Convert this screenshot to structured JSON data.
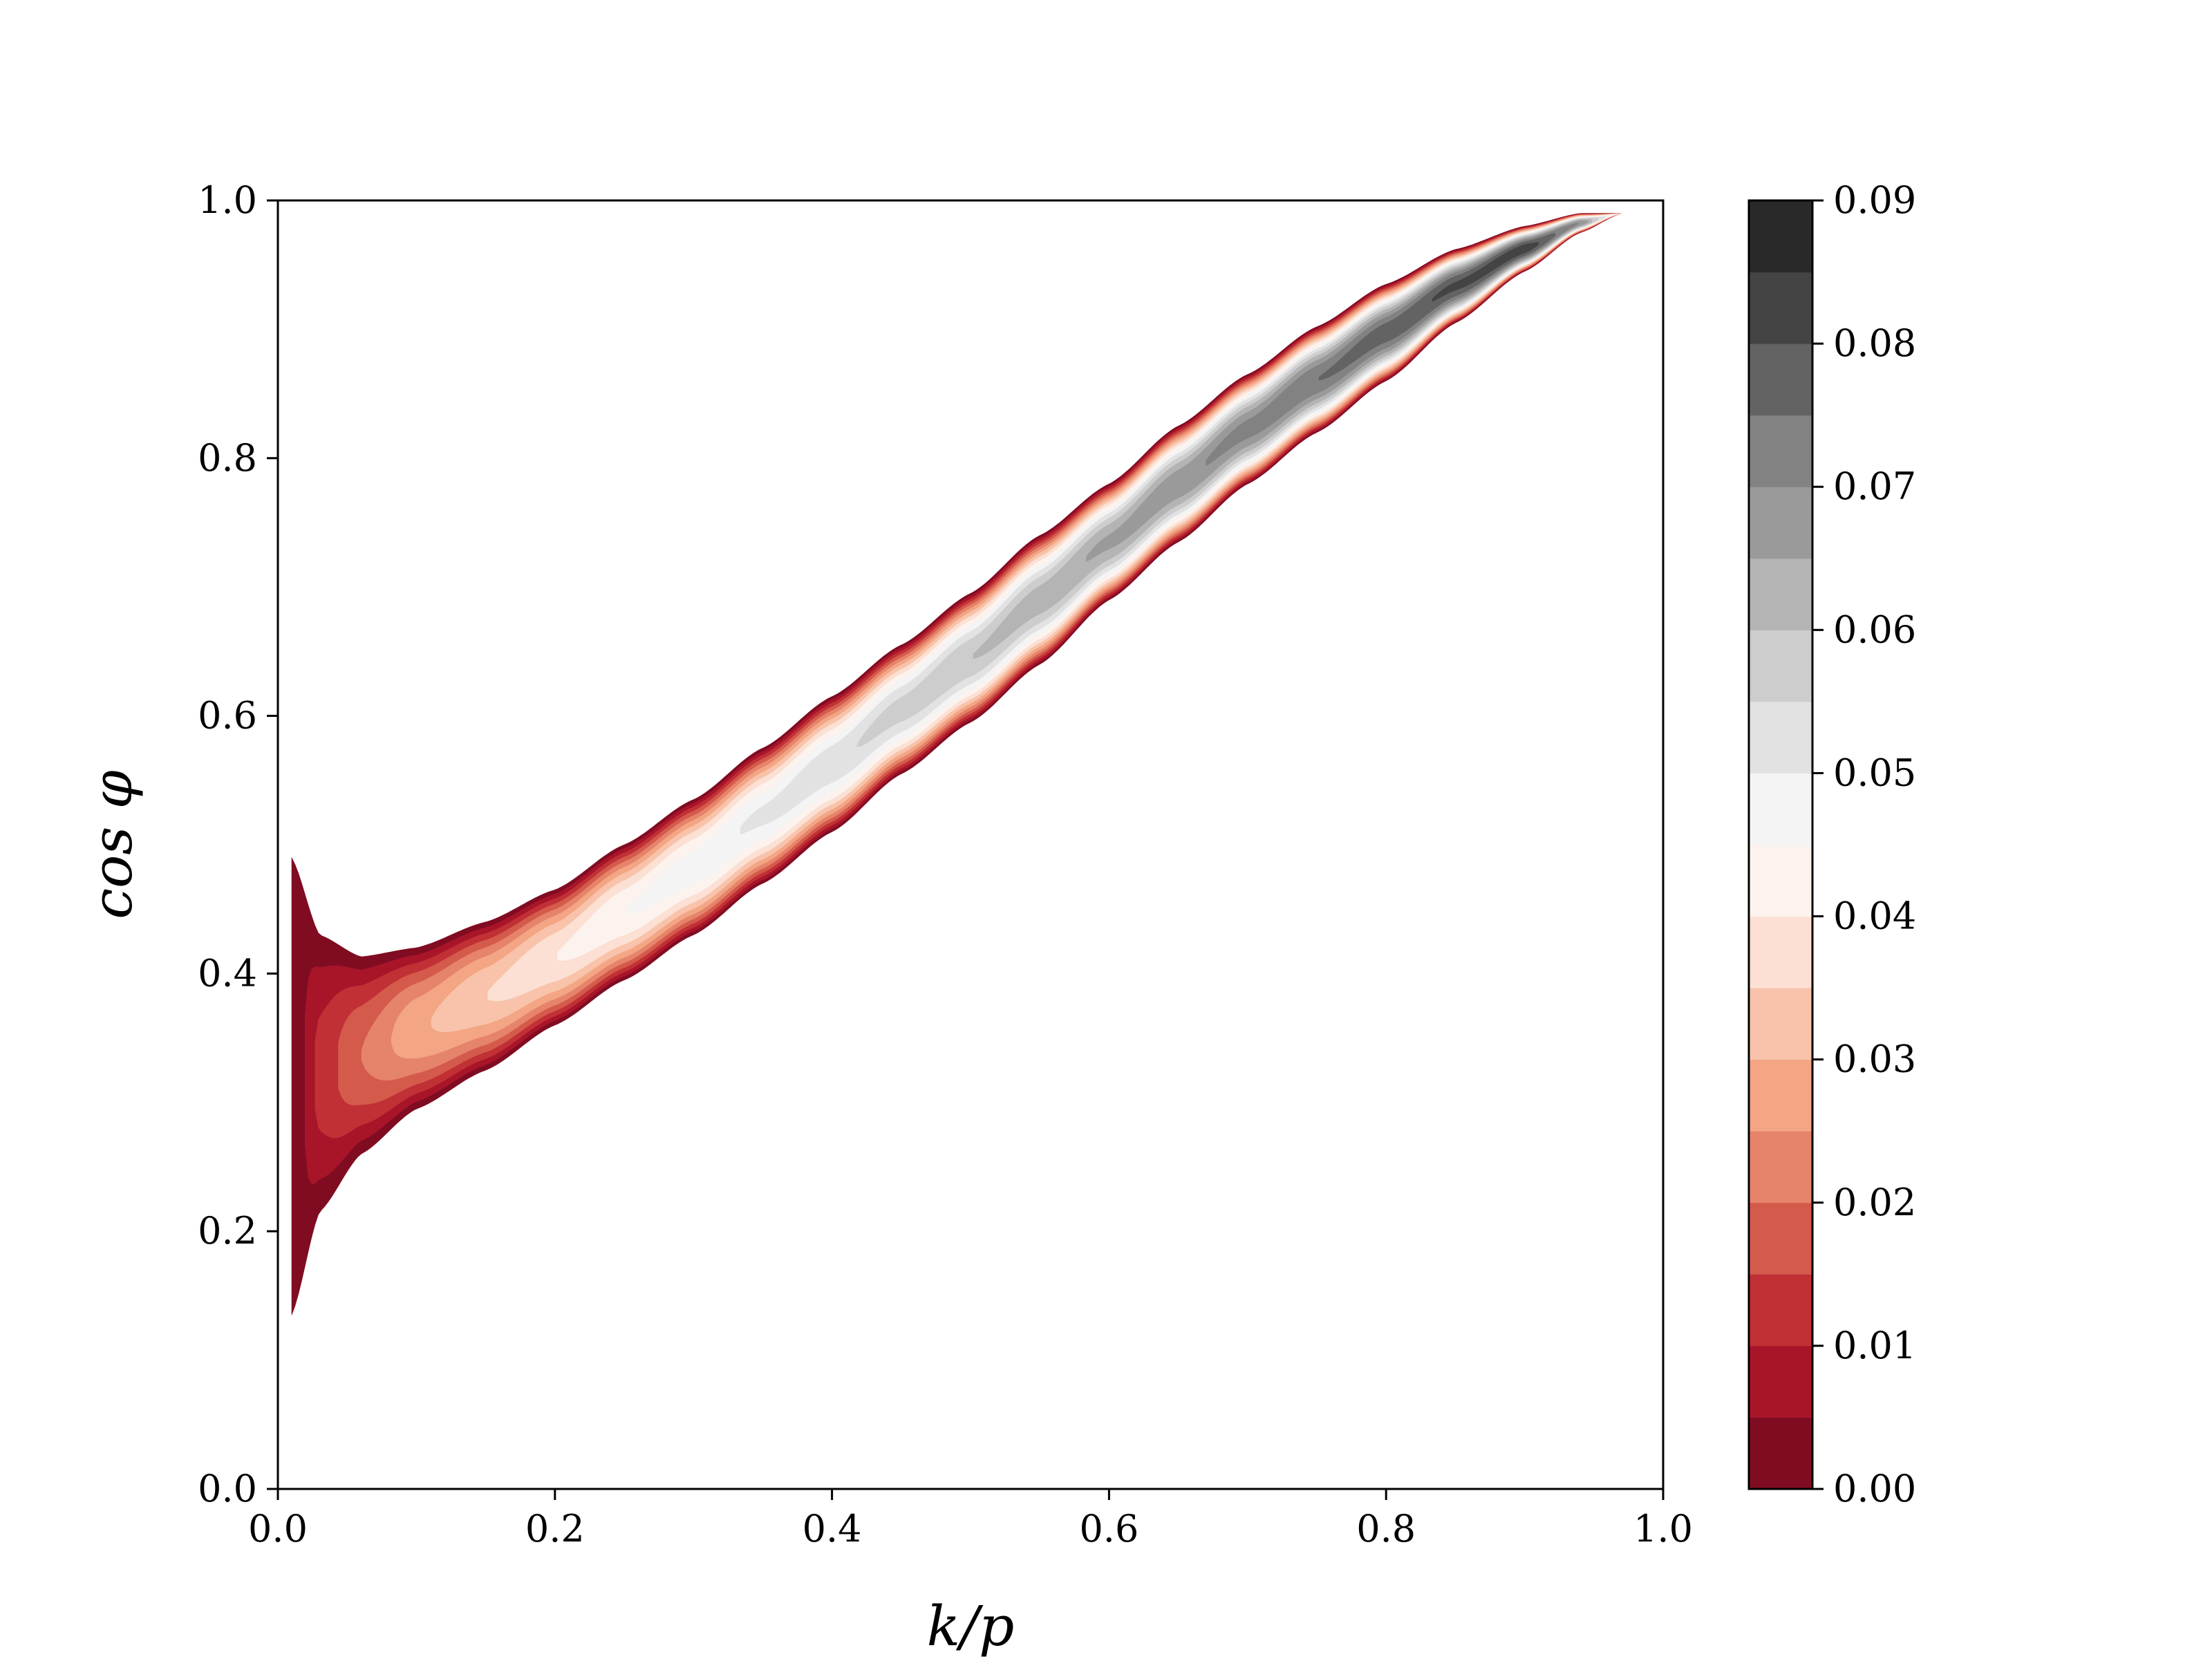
{
  "chart_data": {
    "type": "contourf",
    "xlabel": "k/p",
    "ylabel": "cos φ",
    "xlim": [
      0.0,
      1.0
    ],
    "ylim": [
      0.0,
      1.0
    ],
    "x_ticks": [
      0.0,
      0.2,
      0.4,
      0.6,
      0.8,
      1.0
    ],
    "x_tick_labels": [
      "0.0",
      "0.2",
      "0.4",
      "0.6",
      "0.8",
      "1.0"
    ],
    "y_ticks": [
      0.0,
      0.2,
      0.4,
      0.6,
      0.8,
      1.0
    ],
    "y_tick_labels": [
      "0.0",
      "0.2",
      "0.4",
      "0.6",
      "0.8",
      "1.0"
    ],
    "grid": false,
    "colormap": "RdGy",
    "colorbar": {
      "range": [
        0.0,
        0.09
      ],
      "levels": [
        0.0,
        0.005,
        0.01,
        0.015,
        0.02,
        0.025,
        0.03,
        0.035,
        0.04,
        0.045,
        0.05,
        0.055,
        0.06,
        0.065,
        0.07,
        0.075,
        0.08,
        0.085,
        0.09
      ],
      "ticks": [
        0.0,
        0.01,
        0.02,
        0.03,
        0.04,
        0.05,
        0.06,
        0.07,
        0.08,
        0.09
      ],
      "tick_labels": [
        "0.00",
        "0.01",
        "0.02",
        "0.03",
        "0.04",
        "0.05",
        "0.06",
        "0.07",
        "0.08",
        "0.09"
      ],
      "colors": [
        "#800c22",
        "#a81529",
        "#c03035",
        "#d45a4c",
        "#e6836b",
        "#f3a584",
        "#f8c3aa",
        "#fbe0d3",
        "#fdf3ee",
        "#f4f4f4",
        "#e2e2e2",
        "#cdcdcd",
        "#b4b4b4",
        "#9a9a9a",
        "#828282",
        "#636363",
        "#444444",
        "#292929"
      ]
    },
    "band": {
      "x": [
        0.01,
        0.03,
        0.06,
        0.1,
        0.15,
        0.2,
        0.25,
        0.3,
        0.35,
        0.4,
        0.45,
        0.5,
        0.55,
        0.6,
        0.65,
        0.7,
        0.75,
        0.8,
        0.85,
        0.9,
        0.94,
        0.97
      ],
      "upper": [
        0.49,
        0.43,
        0.413,
        0.42,
        0.44,
        0.465,
        0.5,
        0.535,
        0.575,
        0.615,
        0.655,
        0.695,
        0.74,
        0.78,
        0.825,
        0.865,
        0.902,
        0.935,
        0.962,
        0.98,
        0.99,
        0.99
      ],
      "lower": [
        0.135,
        0.215,
        0.26,
        0.295,
        0.325,
        0.36,
        0.395,
        0.43,
        0.47,
        0.51,
        0.555,
        0.595,
        0.64,
        0.69,
        0.735,
        0.78,
        0.82,
        0.86,
        0.905,
        0.945,
        0.975,
        0.99
      ],
      "ridge_value": [
        0.0,
        0.012,
        0.02,
        0.029,
        0.035,
        0.04,
        0.045,
        0.048,
        0.051,
        0.054,
        0.057,
        0.06,
        0.063,
        0.066,
        0.069,
        0.072,
        0.075,
        0.078,
        0.081,
        0.083,
        0.07,
        0.04
      ]
    }
  }
}
